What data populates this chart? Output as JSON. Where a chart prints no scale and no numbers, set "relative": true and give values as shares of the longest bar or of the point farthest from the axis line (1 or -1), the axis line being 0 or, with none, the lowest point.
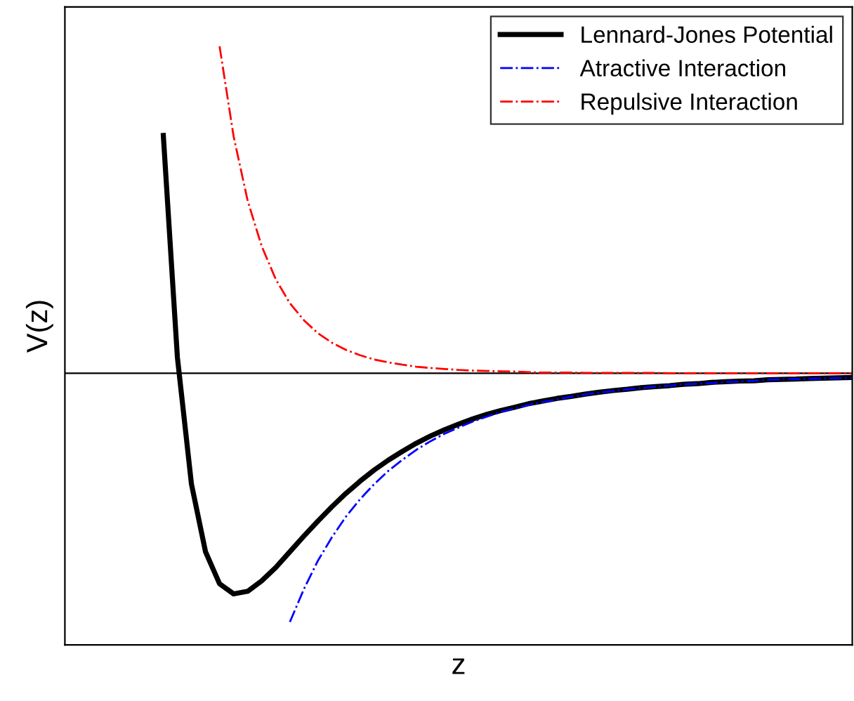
{
  "chart_data": {
    "type": "line",
    "relative": true,
    "xlabel": "z",
    "ylabel": "V(z)",
    "legend": "top right",
    "tick_labels": false,
    "categories": [
      null,
      null,
      null,
      null,
      null,
      null,
      null,
      null,
      null,
      null,
      null,
      null,
      null,
      null,
      null,
      null,
      null,
      null,
      null,
      null,
      null,
      null,
      null,
      null,
      null,
      null,
      null,
      null,
      null,
      null,
      null,
      null,
      null,
      null,
      null,
      null,
      null,
      null,
      null,
      null,
      null,
      null,
      null,
      null,
      null,
      null,
      null,
      null,
      null,
      null
    ],
    "series": [
      {
        "name": "Lennard-Jones Potential",
        "color": "#000000",
        "line_style": "solid",
        "values": [
          0.727,
          0.049,
          -0.339,
          -0.546,
          -0.644,
          -0.675,
          -0.667,
          -0.635,
          -0.594,
          -0.546,
          -0.498,
          -0.452,
          -0.408,
          -0.367,
          -0.33,
          -0.296,
          -0.266,
          -0.239,
          -0.214,
          -0.192,
          -0.173,
          -0.156,
          -0.14,
          -0.126,
          -0.114,
          -0.104,
          -0.093,
          -0.085,
          -0.077,
          -0.071,
          -0.064,
          -0.058,
          -0.053,
          -0.049,
          -0.044,
          -0.041,
          -0.038,
          -0.034,
          -0.032,
          -0.028,
          -0.026,
          -0.024,
          -0.023,
          -0.02,
          -0.019,
          -0.018,
          -0.016,
          -0.015,
          -0.014,
          -0.013
        ]
      },
      {
        "name": "Atractive Interaction",
        "color": "#0000ff",
        "line_style": "dashed",
        "values": [
          null,
          null,
          null,
          null,
          null,
          null,
          null,
          null,
          null,
          -0.761,
          -0.66,
          -0.573,
          -0.501,
          -0.438,
          -0.385,
          -0.339,
          -0.299,
          -0.265,
          -0.234,
          -0.208,
          -0.185,
          -0.166,
          -0.148,
          -0.133,
          -0.119,
          -0.108,
          -0.097,
          -0.088,
          -0.08,
          -0.072,
          -0.065,
          -0.059,
          -0.055,
          -0.049,
          -0.046,
          -0.041,
          -0.038,
          -0.034,
          -0.032,
          -0.03,
          -0.027,
          -0.025,
          -0.023,
          -0.02,
          -0.019,
          -0.018,
          -0.017,
          -0.016,
          -0.015,
          -0.014
        ]
      },
      {
        "name": "Repulsive Interaction",
        "color": "#ff0000",
        "line_style": "dashed",
        "values": [
          null,
          null,
          null,
          null,
          1,
          0.724,
          0.527,
          0.388,
          0.287,
          0.214,
          0.162,
          0.122,
          0.093,
          0.071,
          0.055,
          0.042,
          0.033,
          0.026,
          0.02,
          0.016,
          0.013,
          0.01,
          0.008,
          0.007,
          0.006,
          0.005,
          0.003,
          0.002,
          0.002,
          0.002,
          0.001,
          0.001,
          0.001,
          0.001,
          0.001,
          0.001,
          0,
          0,
          0,
          0,
          0,
          0,
          0,
          0,
          0,
          0,
          0,
          0,
          0,
          0
        ]
      }
    ]
  }
}
